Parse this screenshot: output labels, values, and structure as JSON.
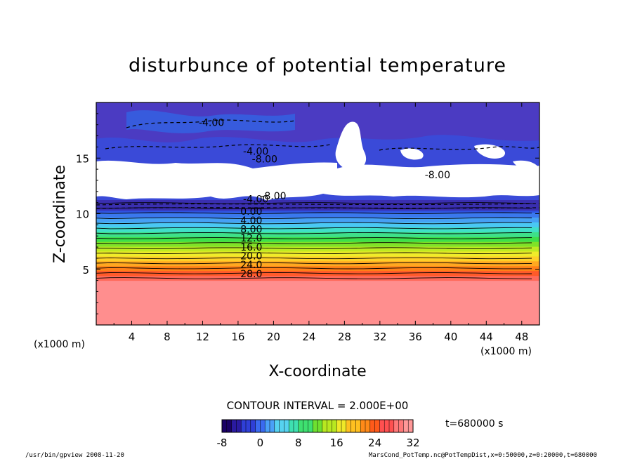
{
  "chart_data": {
    "type": "heatmap",
    "title": "disturbunce of potential temperature",
    "xlabel": "X-coordinate",
    "ylabel": "Z-coordinate",
    "x_unit_left": "(x1000 m)",
    "x_unit_right": "(x1000 m)",
    "x_ticks": [
      4,
      8,
      12,
      16,
      20,
      24,
      28,
      32,
      36,
      40,
      44,
      48
    ],
    "x_range": [
      0,
      50
    ],
    "y_ticks": [
      5,
      10,
      15
    ],
    "y_range": [
      0,
      20
    ],
    "contour_labels": [
      {
        "text": "-4.00",
        "x": 13,
        "z": 17.9
      },
      {
        "text": "-4.00",
        "x": 18,
        "z": 15.3
      },
      {
        "text": "-8.00",
        "x": 19,
        "z": 14.6
      },
      {
        "text": "-8.00",
        "x": 38.5,
        "z": 13.2
      },
      {
        "text": "-8.00",
        "x": 20,
        "z": 11.3
      },
      {
        "text": "-4.00",
        "x": 18,
        "z": 11.0
      },
      {
        "text": "0.00",
        "x": 17.5,
        "z": 9.9
      },
      {
        "text": "4.00",
        "x": 17.5,
        "z": 9.1
      },
      {
        "text": "8.00",
        "x": 17.5,
        "z": 8.3
      },
      {
        "text": "12.0",
        "x": 17.5,
        "z": 7.5
      },
      {
        "text": "16.0",
        "x": 17.5,
        "z": 6.7
      },
      {
        "text": "20.0",
        "x": 17.5,
        "z": 5.9
      },
      {
        "text": "24.0",
        "x": 17.5,
        "z": 5.1
      },
      {
        "text": "28.0",
        "x": 17.5,
        "z": 4.3
      }
    ],
    "colorbar": {
      "ticks": [
        -8,
        0,
        8,
        16,
        24,
        32
      ],
      "range": [
        -8,
        32
      ],
      "colors": [
        "#1a0066",
        "#2a1aa0",
        "#2f3fd8",
        "#3a6af0",
        "#4aa0f8",
        "#56d2f0",
        "#3ee0b0",
        "#3ee070",
        "#6ee030",
        "#b8e820",
        "#f0e828",
        "#ffc020",
        "#ff8a18",
        "#ff5a1a",
        "#ff5050",
        "#ff7878",
        "#ff9898"
      ]
    },
    "contour_interval_text": "CONTOUR INTERVAL = 2.000E+00",
    "time_text": "t=680000 s"
  },
  "footer": {
    "left": "/usr/bin/gpview   2008-11-20",
    "right": "MarsCond_PotTemp.nc@PotTempDist,x=0:50000,z=0:20000,t=680000"
  }
}
